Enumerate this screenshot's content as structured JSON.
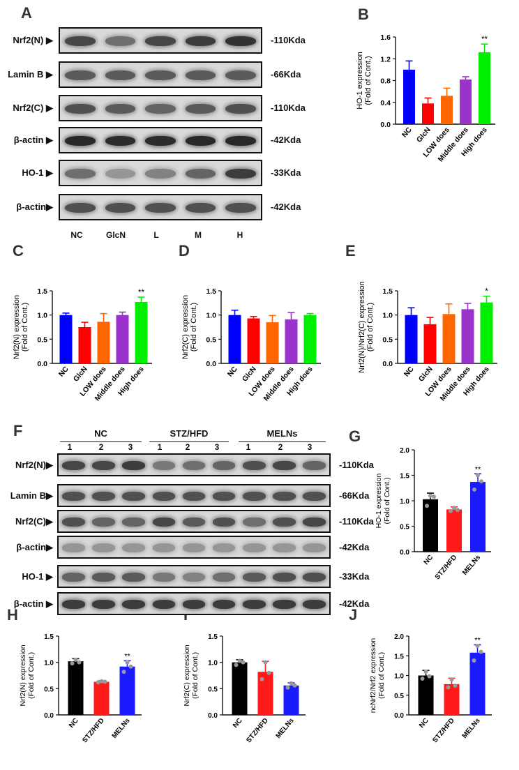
{
  "panels": {
    "A": "A",
    "B": "B",
    "C": "C",
    "D": "D",
    "E": "E",
    "F": "F",
    "G": "G",
    "H": "H",
    "I": "I",
    "J": "J"
  },
  "blotA": {
    "rows": [
      {
        "label": "Nrf2(N) ▶",
        "kda": "-110Kda"
      },
      {
        "label": "Lamin B ▶",
        "kda": "-66Kda"
      },
      {
        "label": "Nrf2(C) ▶",
        "kda": "-110Kda"
      },
      {
        "label": "β-actin ▶",
        "kda": "-42Kda"
      },
      {
        "label": "HO-1 ▶",
        "kda": "-33Kda"
      },
      {
        "label": "β-actin▶",
        "kda": "-42Kda"
      }
    ],
    "lanes": [
      "NC",
      "GlcN",
      "L",
      "M",
      "H"
    ],
    "band_intensity": [
      [
        0.75,
        0.55,
        0.75,
        0.8,
        0.85
      ],
      [
        0.65,
        0.65,
        0.65,
        0.65,
        0.65
      ],
      [
        0.7,
        0.65,
        0.6,
        0.65,
        0.7
      ],
      [
        0.9,
        0.88,
        0.88,
        0.9,
        0.9
      ],
      [
        0.55,
        0.35,
        0.45,
        0.6,
        0.8
      ],
      [
        0.7,
        0.7,
        0.7,
        0.7,
        0.7
      ]
    ]
  },
  "blotF": {
    "groups": [
      "NC",
      "STZ/HFD",
      "MELNs"
    ],
    "lane_numbers": [
      "1",
      "2",
      "3",
      "1",
      "2",
      "3",
      "1",
      "2",
      "3"
    ],
    "rows": [
      {
        "label": "Nrf2(N)▶",
        "kda": "-110Kda"
      },
      {
        "label": "Lamin B▶",
        "kda": "-66Kda"
      },
      {
        "label": "Nrf2(C)▶",
        "kda": "-110Kda"
      },
      {
        "label": "β-actin▶",
        "kda": "-42Kda"
      },
      {
        "label": "HO-1 ▶",
        "kda": "-33Kda"
      },
      {
        "label": "β-actin ▶",
        "kda": "-42Kda"
      }
    ],
    "band_intensity": [
      [
        0.75,
        0.75,
        0.8,
        0.5,
        0.55,
        0.6,
        0.7,
        0.75,
        0.6
      ],
      [
        0.7,
        0.7,
        0.7,
        0.7,
        0.7,
        0.7,
        0.7,
        0.7,
        0.7
      ],
      [
        0.7,
        0.6,
        0.6,
        0.75,
        0.65,
        0.7,
        0.55,
        0.7,
        0.75
      ],
      [
        0.35,
        0.35,
        0.35,
        0.35,
        0.35,
        0.35,
        0.35,
        0.35,
        0.35
      ],
      [
        0.6,
        0.65,
        0.65,
        0.5,
        0.45,
        0.55,
        0.65,
        0.7,
        0.7
      ],
      [
        0.8,
        0.8,
        0.8,
        0.8,
        0.8,
        0.8,
        0.8,
        0.8,
        0.8
      ]
    ]
  },
  "chart_data": [
    {
      "id": "B",
      "type": "bar",
      "ylabel": "HO-1 expression\n(Fold of Cont.)",
      "categories": [
        "NC",
        "GlcN",
        "LOW does",
        "Middle does",
        "High does"
      ],
      "values": [
        1.0,
        0.38,
        0.52,
        0.82,
        1.32
      ],
      "errors": [
        0.16,
        0.1,
        0.14,
        0.05,
        0.15
      ],
      "colors": [
        "#0000ff",
        "#ff0000",
        "#ff6600",
        "#9933cc",
        "#00ee00"
      ],
      "sig": [
        "",
        "",
        "",
        "",
        "**"
      ],
      "ylim": [
        0,
        1.6
      ],
      "yticks": [
        "0.0",
        "0.4",
        "0.8",
        "1.2",
        "1.6"
      ],
      "points": false
    },
    {
      "id": "C",
      "type": "bar",
      "ylabel": "Nrf2(N) expression\n(Fold of Cont.)",
      "categories": [
        "NC",
        "GlcN",
        "LOW does",
        "Middle does",
        "High does"
      ],
      "values": [
        1.0,
        0.75,
        0.86,
        1.0,
        1.27
      ],
      "errors": [
        0.04,
        0.1,
        0.17,
        0.06,
        0.1
      ],
      "colors": [
        "#0000ff",
        "#ff0000",
        "#ff6600",
        "#9933cc",
        "#00ee00"
      ],
      "sig": [
        "",
        "",
        "",
        "",
        "**"
      ],
      "ylim": [
        0,
        1.5
      ],
      "yticks": [
        "0.0",
        "0.5",
        "1.0",
        "1.5"
      ],
      "points": false
    },
    {
      "id": "D",
      "type": "bar",
      "ylabel": "Nrf2(C) expression\n(Fold of Cont.)",
      "categories": [
        "NC",
        "GlcN",
        "LOW does",
        "Middle does",
        "High does"
      ],
      "values": [
        1.0,
        0.93,
        0.85,
        0.91,
        1.0
      ],
      "errors": [
        0.1,
        0.04,
        0.14,
        0.14,
        0.03
      ],
      "colors": [
        "#0000ff",
        "#ff0000",
        "#ff6600",
        "#9933cc",
        "#00ee00"
      ],
      "sig": [
        "",
        "",
        "",
        "",
        ""
      ],
      "ylim": [
        0,
        1.5
      ],
      "yticks": [
        "0.0",
        "0.5",
        "1.0",
        "1.5"
      ],
      "points": false
    },
    {
      "id": "E",
      "type": "bar",
      "ylabel": "Nrf2(N)/Nrf2(C) expression\n(Fold of Cont.)",
      "categories": [
        "NC",
        "GlcN",
        "LOW does",
        "Middle does",
        "High does"
      ],
      "values": [
        1.0,
        0.81,
        1.02,
        1.12,
        1.26
      ],
      "errors": [
        0.15,
        0.14,
        0.21,
        0.12,
        0.13
      ],
      "colors": [
        "#0000ff",
        "#ff0000",
        "#ff6600",
        "#9933cc",
        "#00ee00"
      ],
      "sig": [
        "",
        "",
        "",
        "",
        "*"
      ],
      "ylim": [
        0,
        1.5
      ],
      "yticks": [
        "0.0",
        "0.5",
        "1.0",
        "1.5"
      ],
      "points": false
    },
    {
      "id": "G",
      "type": "bar",
      "ylabel": "HO-1 expression\n(Fold of Cont.)",
      "categories": [
        "NC",
        "STZ/HFD",
        "MELNs"
      ],
      "values": [
        1.03,
        0.83,
        1.37
      ],
      "errors": [
        0.12,
        0.05,
        0.16
      ],
      "colors": [
        "#000000",
        "#ff1a1a",
        "#1a1aff"
      ],
      "sig": [
        "",
        "",
        "**"
      ],
      "ylim": [
        0,
        2.0
      ],
      "yticks": [
        "0.0",
        "0.5",
        "1.0",
        "1.5",
        "2.0"
      ],
      "points": [
        [
          0.9,
          1.1,
          1.08
        ],
        [
          0.8,
          0.86,
          0.82
        ],
        [
          1.22,
          1.5,
          1.38
        ]
      ]
    },
    {
      "id": "H",
      "type": "bar",
      "ylabel": "Nrf2(N) expression\n(Fold of Cont.)",
      "categories": [
        "NC",
        "STZ/HFD",
        "MELNs"
      ],
      "values": [
        1.02,
        0.63,
        0.92
      ],
      "errors": [
        0.05,
        0.02,
        0.11
      ],
      "colors": [
        "#000000",
        "#ff1a1a",
        "#1a1aff"
      ],
      "sig": [
        "",
        "",
        "**"
      ],
      "ylim": [
        0,
        1.5
      ],
      "yticks": [
        "0.0",
        "0.5",
        "1.0",
        "1.5"
      ],
      "points": [
        [
          0.98,
          1.05,
          1.0
        ],
        [
          0.62,
          0.64,
          0.63
        ],
        [
          0.82,
          1.0,
          0.92
        ]
      ]
    },
    {
      "id": "I",
      "type": "bar",
      "ylabel": "Nrf2(C) expression\n(Fold of Cont.)",
      "categories": [
        "NC",
        "STZ/HFD",
        "MELNs"
      ],
      "values": [
        1.0,
        0.82,
        0.56
      ],
      "errors": [
        0.05,
        0.2,
        0.05
      ],
      "colors": [
        "#000000",
        "#ff1a1a",
        "#1a1aff"
      ],
      "sig": [
        "",
        "",
        ""
      ],
      "ylim": [
        0,
        1.5
      ],
      "yticks": [
        "0.0",
        "0.5",
        "1.0",
        "1.5"
      ],
      "points": [
        [
          0.95,
          1.03,
          1.0
        ],
        [
          0.68,
          1.0,
          0.8
        ],
        [
          0.52,
          0.6,
          0.56
        ]
      ]
    },
    {
      "id": "J",
      "type": "bar",
      "ylabel": "ncNrf2/Nrf2 expression\n(Fold of Cont.)",
      "categories": [
        "NC",
        "STZ/HFD",
        "MELNs"
      ],
      "values": [
        1.0,
        0.78,
        1.58
      ],
      "errors": [
        0.13,
        0.15,
        0.2
      ],
      "colors": [
        "#000000",
        "#ff1a1a",
        "#1a1aff"
      ],
      "sig": [
        "",
        "",
        "**"
      ],
      "ylim": [
        0,
        2.0
      ],
      "yticks": [
        "0.0",
        "0.5",
        "1.0",
        "1.5",
        "2.0"
      ],
      "points": [
        [
          0.92,
          1.1,
          0.98
        ],
        [
          0.7,
          0.9,
          0.74
        ],
        [
          1.38,
          1.75,
          1.6
        ]
      ]
    }
  ]
}
